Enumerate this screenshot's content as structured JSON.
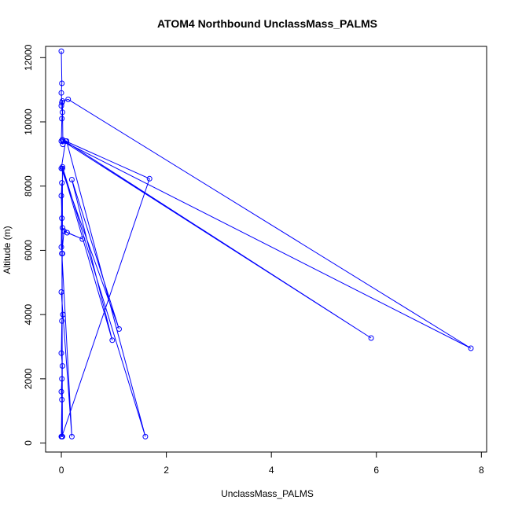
{
  "chart_data": {
    "type": "line",
    "title": "ATOM4 Northbound UnclassMass_PALMS",
    "xlabel": "UnclassMass_PALMS",
    "ylabel": "Altitude (m)",
    "xlim": [
      -0.3,
      8.1
    ],
    "ylim": [
      -280,
      12350
    ],
    "x_ticks": [
      "0",
      "2",
      "4",
      "6",
      "8"
    ],
    "y_ticks": [
      "0",
      "2000",
      "4000",
      "6000",
      "8000",
      "10000",
      "12000"
    ],
    "grid": false,
    "legend": "none",
    "color": "#0000ff",
    "series": [
      {
        "x": [
          0.0,
          0.01,
          0.0,
          0.01,
          0.0,
          0.02,
          0.01,
          0.0,
          0.03,
          0.02,
          0.13,
          7.8,
          0.03,
          5.9,
          0.02,
          0.1,
          1.6,
          0.02,
          0.01,
          1.68,
          0.08,
          0.0,
          1.1,
          0.2,
          0.97,
          0.02,
          0.02,
          0.11,
          0.4,
          0.05,
          0.01,
          0.2,
          0.0,
          0.03,
          0.01,
          0.0,
          0.02,
          0.01,
          0.0,
          0.01,
          0.0,
          0.02,
          0.01,
          0.0,
          0.01,
          0.0,
          0.02
        ],
        "y": [
          12200,
          11200,
          10900,
          10600,
          10500,
          10300,
          10100,
          9400,
          9300,
          10650,
          10700,
          2950,
          9400,
          3270,
          9450,
          9400,
          200,
          8600,
          200,
          8230,
          9400,
          8550,
          3550,
          8200,
          3200,
          8550,
          6700,
          6550,
          6350,
          6600,
          5900,
          200,
          4700,
          4000,
          3800,
          2800,
          2400,
          2000,
          1600,
          1350,
          200,
          200,
          7000,
          7700,
          8100,
          6100,
          5900
        ]
      }
    ]
  }
}
